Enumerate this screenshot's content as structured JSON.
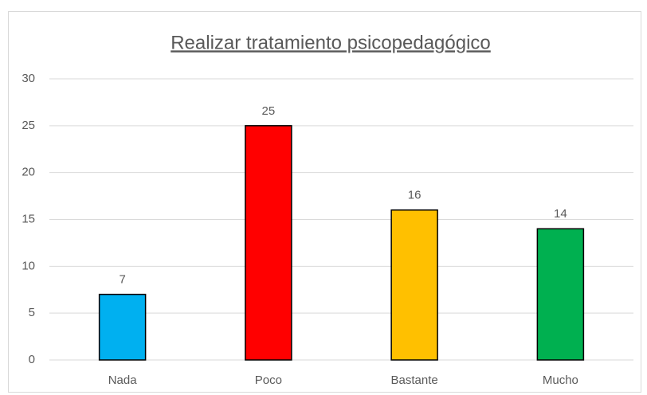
{
  "chart_data": {
    "type": "bar",
    "title": "Realizar tratamiento psicopedagógico",
    "categories": [
      "Nada",
      "Poco",
      "Bastante",
      "Mucho"
    ],
    "values": [
      7,
      25,
      16,
      14
    ],
    "colors": [
      "#00b0f0",
      "#ff0000",
      "#ffc000",
      "#00b050"
    ],
    "ylim": [
      0,
      30
    ],
    "yticks": [
      0,
      5,
      10,
      15,
      20,
      25,
      30
    ],
    "grid": true
  }
}
